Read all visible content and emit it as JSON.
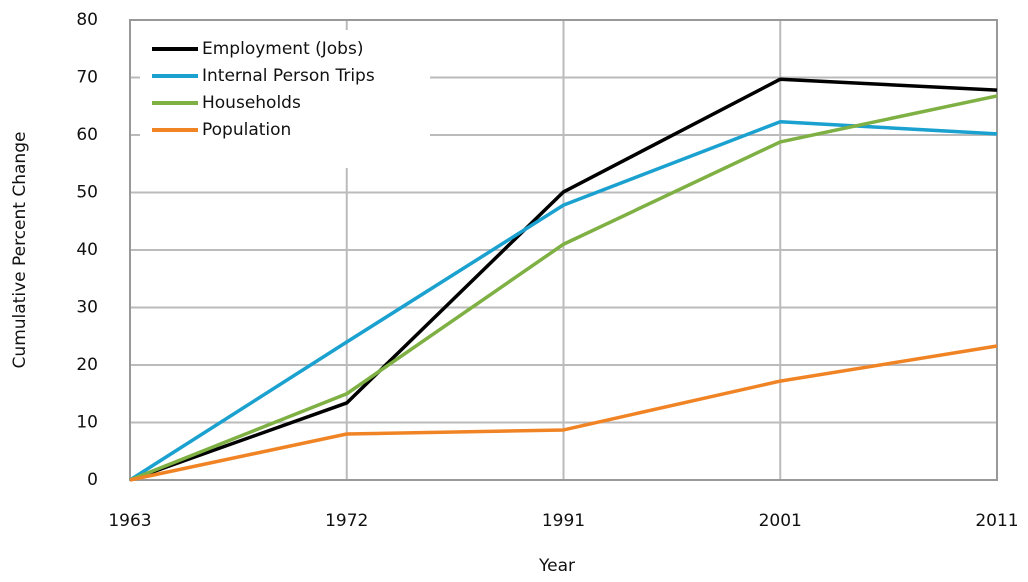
{
  "chart_data": {
    "type": "line",
    "x_label": "Year",
    "y_label": "Cumulative Percent Change",
    "categories": [
      "1963",
      "1972",
      "1991",
      "2001",
      "2011"
    ],
    "series": [
      {
        "name": "Employment (Jobs)",
        "color": "#000000",
        "values": [
          0,
          13.4,
          50.1,
          69.7,
          67.8
        ]
      },
      {
        "name": "Internal Person Trips",
        "color": "#1ba1cf",
        "values": [
          0,
          24,
          47.8,
          62.3,
          60.2
        ]
      },
      {
        "name": "Households",
        "color": "#7eb043",
        "values": [
          0,
          15,
          41,
          58.8,
          66.8
        ]
      },
      {
        "name": "Population",
        "color": "#f08425",
        "values": [
          0,
          8,
          8.7,
          17.2,
          23.3
        ]
      }
    ],
    "ylim": [
      0,
      80
    ],
    "yticks": [
      0,
      10,
      20,
      30,
      40,
      50,
      60,
      70,
      80
    ],
    "grid": true,
    "legend": "top-left"
  }
}
